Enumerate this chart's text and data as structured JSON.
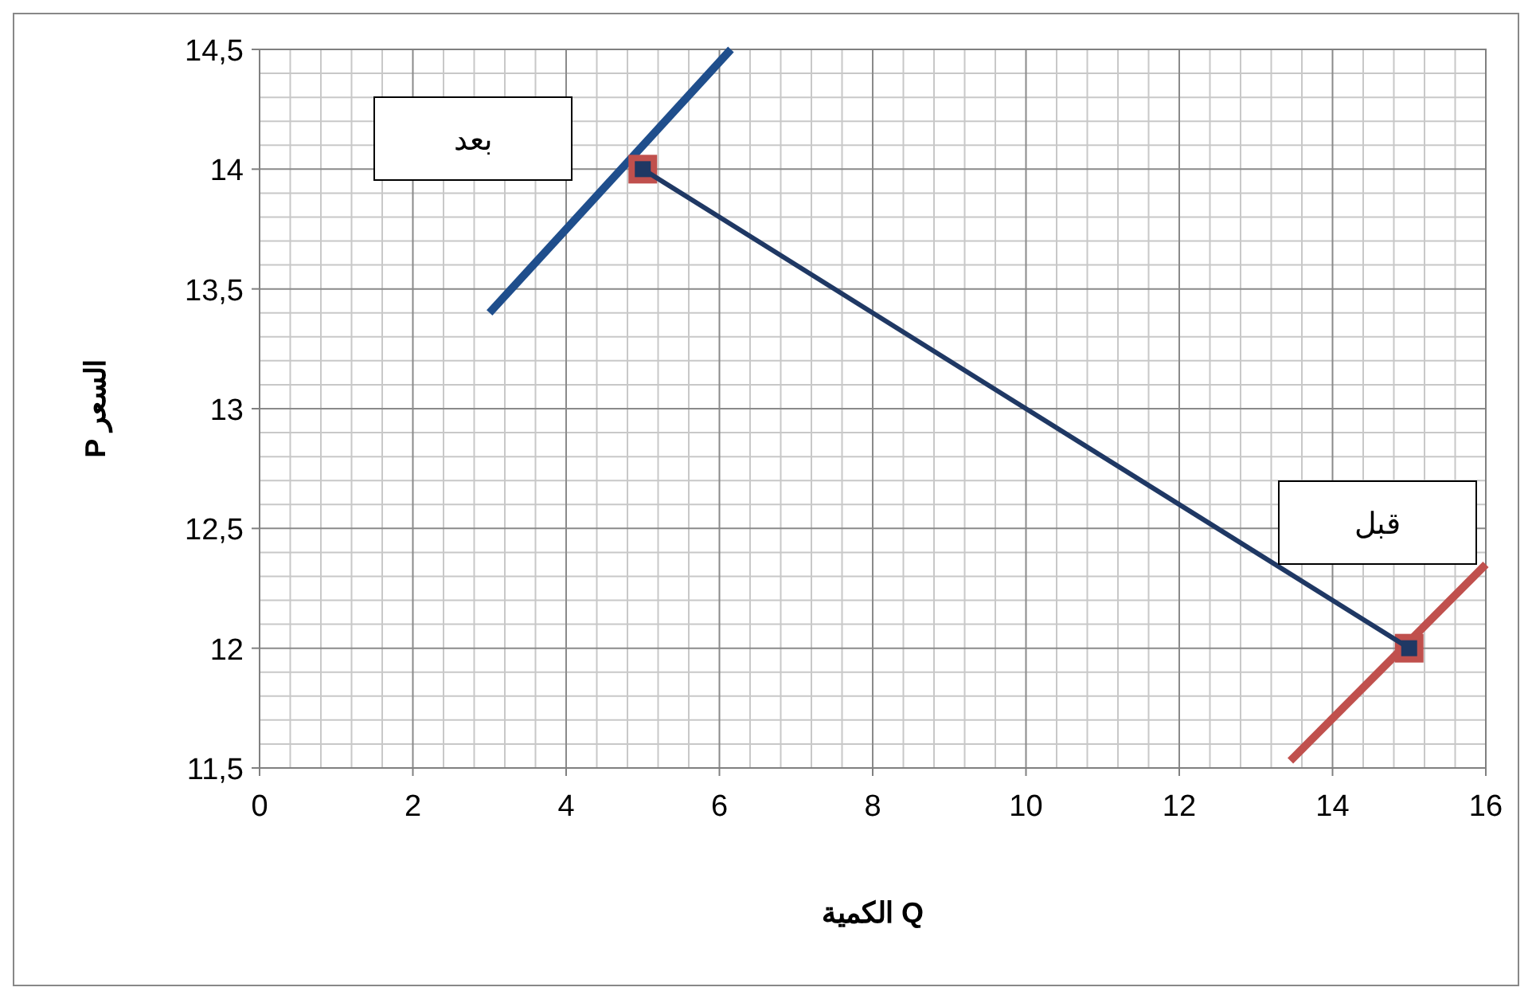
{
  "chart_data": {
    "type": "line",
    "xlabel": "الكمية Q",
    "ylabel": "P السعر",
    "xlim": [
      0,
      16
    ],
    "xticks": [
      0,
      2,
      4,
      6,
      8,
      10,
      12,
      14,
      16
    ],
    "ylim": [
      11.5,
      14.5
    ],
    "yticks": [
      {
        "value": 11.5,
        "label": "11,5"
      },
      {
        "value": 12,
        "label": "12"
      },
      {
        "value": 12.5,
        "label": "12,5"
      },
      {
        "value": 13,
        "label": "13"
      },
      {
        "value": 13.5,
        "label": "13,5"
      },
      {
        "value": 14,
        "label": "14"
      },
      {
        "value": 14.5,
        "label": "14,5"
      }
    ],
    "grid": true,
    "series": [
      {
        "color": "#1f4e8c",
        "x": [
          3,
          6.15
        ],
        "values": [
          13.4,
          14.5
        ],
        "marker": "none"
      },
      {
        "color": "#c0504d",
        "x": [
          13.45,
          16
        ],
        "values": [
          11.53,
          12.35
        ],
        "marker": "none"
      },
      {
        "type": "scatter",
        "color": "#c0504d",
        "x": [
          5,
          15
        ],
        "values": [
          14,
          12
        ],
        "marker": "square"
      },
      {
        "color": "#1f3864",
        "x": [
          5,
          15
        ],
        "values": [
          14,
          12
        ],
        "marker": "square"
      }
    ],
    "annotations": [
      "بعد",
      "قبل"
    ]
  }
}
